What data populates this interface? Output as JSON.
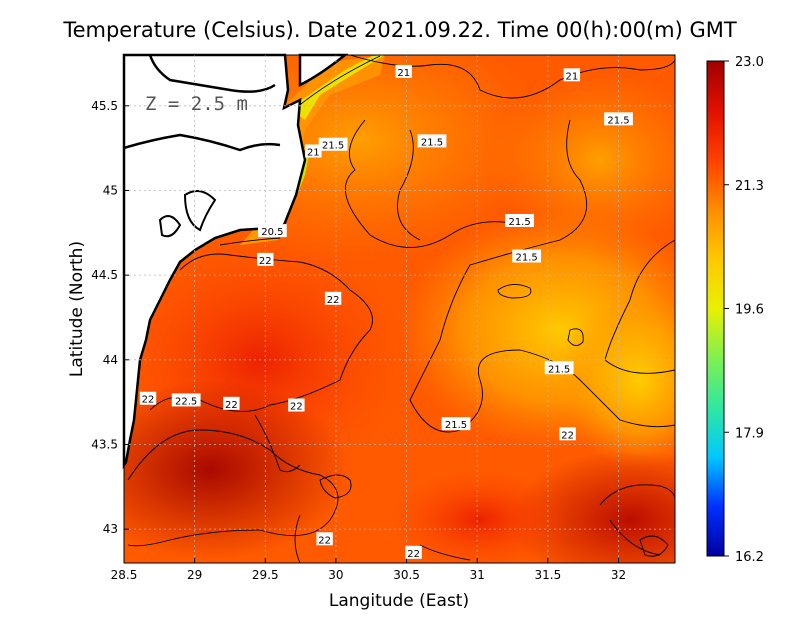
{
  "title": "Temperature (Celsius). Date 2021.09.22. Time 00(h):00(m)  GMT",
  "depth_label": "Z = 2.5 m",
  "x_axis": {
    "label": "Langitude (East)",
    "ticks": [
      "28.5",
      "29",
      "29.5",
      "30",
      "30.5",
      "31",
      "31.5",
      "32"
    ],
    "values": [
      28.5,
      29,
      29.5,
      30,
      30.5,
      31,
      31.5,
      32
    ],
    "range": [
      28.5,
      32.4
    ]
  },
  "y_axis": {
    "label": "Latitude (North)",
    "ticks": [
      "43",
      "43.5",
      "44",
      "44.5",
      "45",
      "45.5"
    ],
    "values": [
      43,
      43.5,
      44,
      44.5,
      45,
      45.5
    ],
    "range": [
      42.8,
      45.8
    ]
  },
  "colorbar": {
    "ticks": [
      "23.0",
      "21.3",
      "19.6",
      "17.9",
      "16.2"
    ],
    "values": [
      23.0,
      21.3,
      19.6,
      17.9,
      16.2
    ],
    "range": [
      16.2,
      23.0
    ],
    "colors": [
      "#0000a0",
      "#0030ff",
      "#00c8ff",
      "#30e8a0",
      "#80f050",
      "#e8f000",
      "#ffc800",
      "#ff8c00",
      "#ff4000",
      "#e01000",
      "#a00000"
    ]
  },
  "contour_labels": [
    {
      "text": "21",
      "lon": 30.48,
      "lat": 45.7
    },
    {
      "text": "21",
      "lon": 31.67,
      "lat": 45.68
    },
    {
      "text": "21.5",
      "lon": 32.0,
      "lat": 45.42
    },
    {
      "text": "21.5",
      "lon": 29.98,
      "lat": 45.27
    },
    {
      "text": "21",
      "lon": 29.84,
      "lat": 45.23
    },
    {
      "text": "21.5",
      "lon": 30.68,
      "lat": 45.29
    },
    {
      "text": "21.5",
      "lon": 31.3,
      "lat": 44.82
    },
    {
      "text": "21.5",
      "lon": 31.35,
      "lat": 44.61
    },
    {
      "text": "20.5",
      "lon": 29.55,
      "lat": 44.76
    },
    {
      "text": "22",
      "lon": 29.5,
      "lat": 44.59
    },
    {
      "text": "22",
      "lon": 29.98,
      "lat": 44.36
    },
    {
      "text": "21.5",
      "lon": 31.58,
      "lat": 43.95
    },
    {
      "text": "22",
      "lon": 28.67,
      "lat": 43.77
    },
    {
      "text": "22.5",
      "lon": 28.94,
      "lat": 43.76
    },
    {
      "text": "22",
      "lon": 29.26,
      "lat": 43.74
    },
    {
      "text": "22",
      "lon": 29.72,
      "lat": 43.73
    },
    {
      "text": "21.5",
      "lon": 30.85,
      "lat": 43.62
    },
    {
      "text": "22",
      "lon": 31.64,
      "lat": 43.56
    },
    {
      "text": "22",
      "lon": 29.92,
      "lat": 42.94
    },
    {
      "text": "22",
      "lon": 30.55,
      "lat": 42.86
    }
  ]
}
